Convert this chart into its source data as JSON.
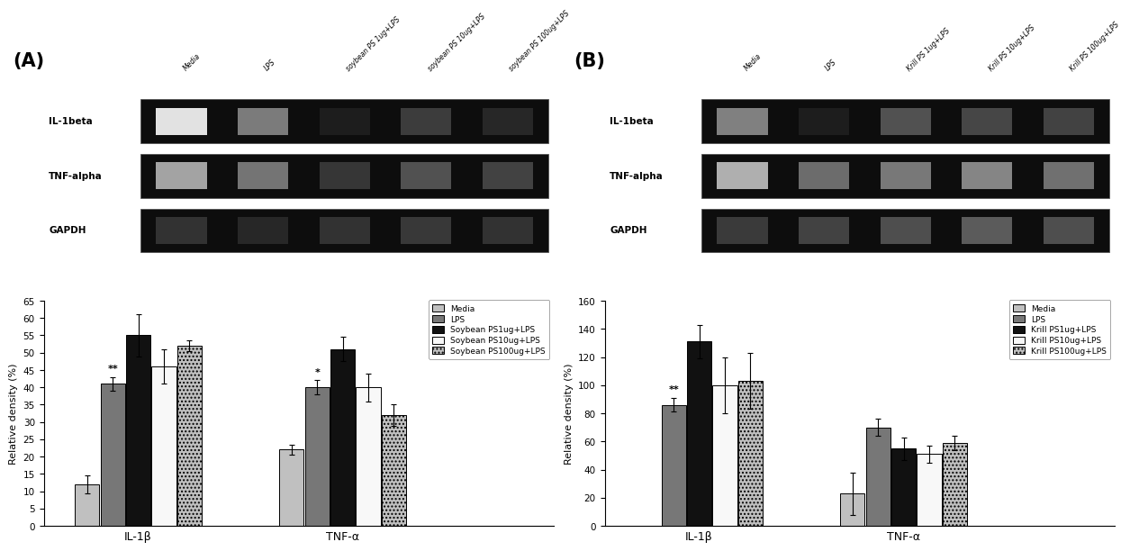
{
  "panel_A": {
    "label": "(A)",
    "gel_col_labels": [
      "Media",
      "LPS",
      "soybean PS 1ug+LPS",
      "soybean PS 10ug+LPS",
      "soybean PS 100ug+LPS"
    ],
    "gel_row_labels": [
      "IL-1beta",
      "TNF-alpha",
      "GAPDH"
    ],
    "bar_groups": [
      "IL-1β",
      "TNF-α"
    ],
    "legend_labels": [
      "Media",
      "LPS",
      "Soybean PS1ug+LPS",
      "Soybean PS10ug+LPS",
      "Soybean PS100ug+LPS"
    ],
    "IL1b_values": [
      12,
      41,
      55,
      46,
      52
    ],
    "IL1b_errors": [
      2.5,
      2,
      6,
      5,
      1.5
    ],
    "TNFa_values": [
      22,
      40,
      51,
      40,
      32
    ],
    "TNFa_errors": [
      1.5,
      2.0,
      3.5,
      4.0,
      3.0
    ],
    "ylim": [
      0,
      65
    ],
    "yticks": [
      0,
      5,
      10,
      15,
      20,
      25,
      30,
      35,
      40,
      45,
      50,
      55,
      60,
      65
    ],
    "ylabel": "Relative density (%)",
    "bar_colors": [
      "#c0c0c0",
      "#777777",
      "#111111",
      "#f8f8f8",
      "#c0c0c0"
    ],
    "bar_hatches": [
      "",
      "",
      "",
      "",
      "...."
    ],
    "il1b_annot_idx": 1,
    "il1b_annot_text": "**",
    "tnfa_annot_idx": 1,
    "tnfa_annot_text": "*",
    "gel_band_intensities": {
      "IL-1beta": [
        0.05,
        0.55,
        1.0,
        0.85,
        0.95
      ],
      "TNF-alpha": [
        0.35,
        0.58,
        0.88,
        0.75,
        0.82
      ],
      "GAPDH": [
        0.9,
        0.95,
        0.9,
        0.87,
        0.9
      ]
    }
  },
  "panel_B": {
    "label": "(B)",
    "gel_col_labels": [
      "Media",
      "LPS",
      "Krill PS 1ug+LPS",
      "Krill PS 10ug+LPS",
      "Krill PS 100ug+LPS"
    ],
    "gel_row_labels": [
      "IL-1beta",
      "TNF-alpha",
      "GAPDH"
    ],
    "bar_groups": [
      "IL-1β",
      "TNF-α"
    ],
    "legend_labels": [
      "Media",
      "LPS",
      "Krill PS1ug+LPS",
      "Krill PS10ug+LPS",
      "Krill PS100ug+LPS"
    ],
    "IL1b_values": [
      0,
      86,
      131,
      100,
      103
    ],
    "IL1b_errors": [
      0,
      5,
      12,
      20,
      20
    ],
    "TNFa_values": [
      23,
      70,
      55,
      51,
      59
    ],
    "TNFa_errors": [
      15,
      6,
      8,
      6,
      5
    ],
    "ylim": [
      0,
      160
    ],
    "yticks": [
      0,
      20,
      40,
      60,
      80,
      100,
      120,
      140,
      160
    ],
    "ylabel": "Relative density (%)",
    "bar_colors": [
      "#c0c0c0",
      "#777777",
      "#111111",
      "#f8f8f8",
      "#c0c0c0"
    ],
    "bar_hatches": [
      "",
      "",
      "",
      "",
      "...."
    ],
    "il1b_annot_idx": 1,
    "il1b_annot_text": "**",
    "tnfa_annot_idx": -1,
    "tnfa_annot_text": "",
    "gel_band_intensities": {
      "IL-1beta": [
        0.52,
        1.0,
        0.75,
        0.8,
        0.82
      ],
      "TNF-alpha": [
        0.3,
        0.62,
        0.56,
        0.5,
        0.6
      ],
      "GAPDH": [
        0.86,
        0.82,
        0.76,
        0.7,
        0.76
      ]
    }
  }
}
